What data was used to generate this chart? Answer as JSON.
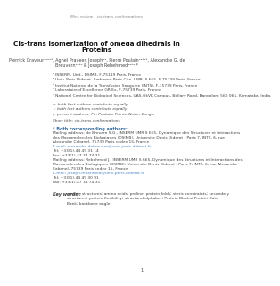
{
  "running_head": "Mini-review : cis-trans conformations",
  "title": "Cis-trans isomerization of omega dihedrals in Proteins",
  "authors": "Pierrick Craveur¹²³⁴⁵, Agnel Praveen Joseph²⁴, Pierre Poulain¹²³⁴⁵, Alexandre G. de\nBreuvern¹²³⁴ & Joseph Rebehmed¹²³⁴ *",
  "affiliations": [
    "¹ INSERM, Unit., DSIMB, F-75119 Paris, France",
    "² Univ. Paris Diderot, Sorbonne Paris Cité, UMR, S 665, F-75739 Paris, France",
    "³ Institut National de la Transfusion Sanguine (INTS), F-75739 Paris, France",
    "⁴ Laboratoire d’Excellence GR-Ex, F-75739 Paris, France",
    "⁵ National Centre for Biological Sciences, UAS-GkVK Campus, Bellary Road, Bangalore 560 065, Karnataka, India."
  ],
  "footnotes": [
    "â: both first authors contribute equally",
    "˙: both last authors contribute equally",
    "†: present address: Fin Poulain, Pointe-Noire, Congo."
  ],
  "short_title_label": "Short title: cis-trans conformations",
  "corresponding_header": "* Both corresponding authors:",
  "corresponding_text_1": "Mailing address: de Brevern S.G., INSERM UMR S 665, Dynamique des Structures et Interactions\ndes Macromolecules Biologiques (DSIMB), Universite Denis Diderot - Paris 7, INTS, 6, rue\nAlexandre Cabanel, 75739 Paris cedex 15, France\nE-mail: alexandre.debrevern@univ-paris-diderot.fr\nTel: +33(1)-44 49 31 14\nFax: +33(1)-47 34 74 31",
  "corresponding_text_2": "Mailing address: Rebehmed J., INSERM UMR S 665, Dynamique des Structures et Interactions des\nMacromolecules Biologiques (DSIMB), Universite Denis Diderot - Paris 7, INTS, 6, rue Alexandre\nCabanel, 75739 Paris cedex 15, France\nE-mail: joseph.rebehmed@univ-paris-diderot.fr\nTel: +33(1)-44 49 30 91\nFax: +33(1)-47 34 74 31",
  "keywords_label": "Key words :",
  "keywords_text": "protein structures; amino acids; proline; protein folds; steric constraints; secondary\nstructures; protein flexibility; structural alphabet; Protein Blocks; Protein Data\nBank; backbone angle.",
  "page_number": "1",
  "email_color": "#4a86c8",
  "title_color": "#000000",
  "text_color": "#444444",
  "header_color": "#888888"
}
